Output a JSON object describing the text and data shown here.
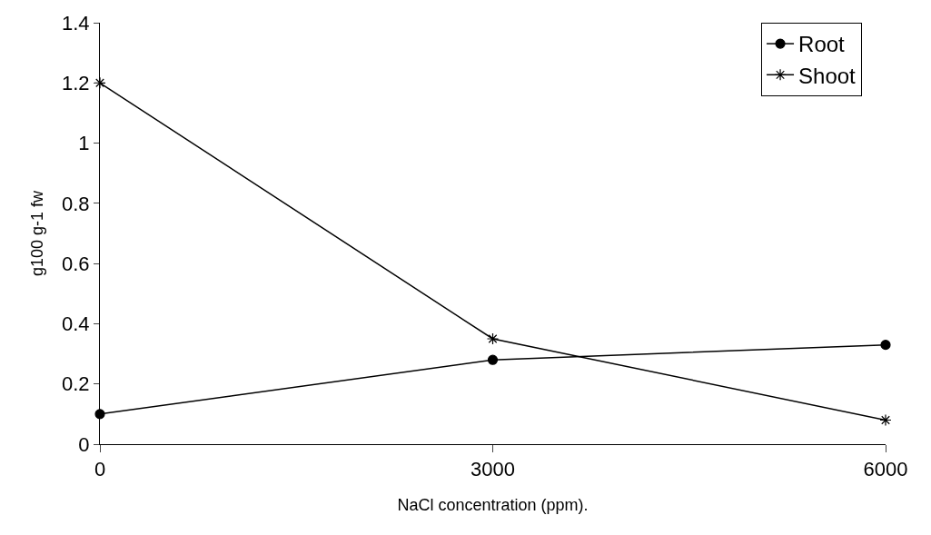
{
  "chart_data": {
    "type": "line",
    "xlabel": "NaCl concentration (ppm).",
    "ylabel": "g100 g-1 fw",
    "x": [
      0,
      3000,
      6000
    ],
    "series": [
      {
        "name": "Root",
        "color": "#000000",
        "marker": "circle",
        "values": [
          0.1,
          0.28,
          0.33
        ]
      },
      {
        "name": "Shoot",
        "color": "#000000",
        "marker": "cross",
        "values": [
          1.2,
          0.35,
          0.08
        ]
      }
    ],
    "xlim": [
      0,
      6000
    ],
    "xticks": [
      0,
      3000,
      6000
    ],
    "ylim": [
      0,
      1.4
    ],
    "yticks": [
      0,
      0.2,
      0.4,
      0.6,
      0.8,
      1,
      1.2,
      1.4
    ],
    "legend": "top right",
    "line_style": "solid"
  }
}
